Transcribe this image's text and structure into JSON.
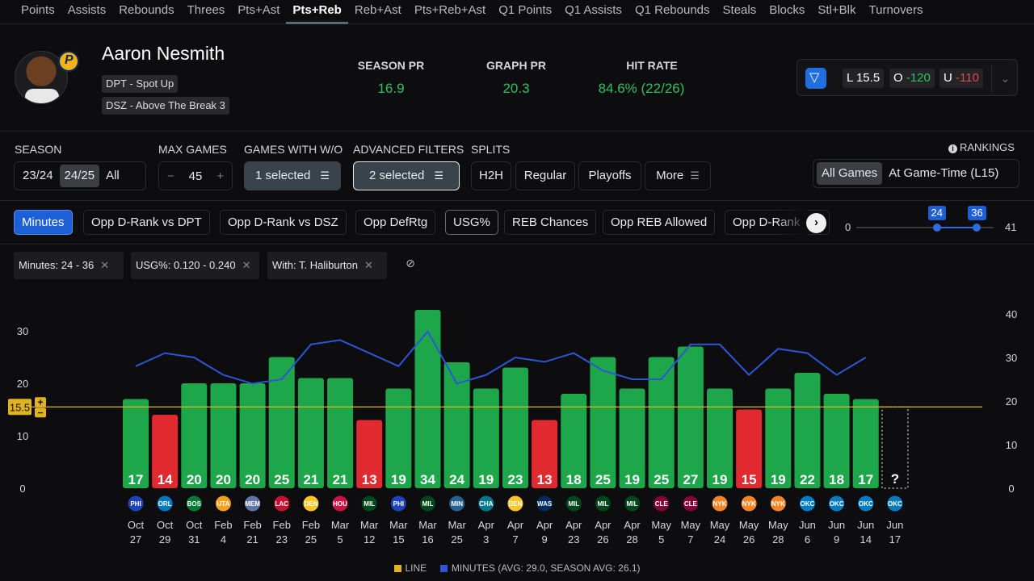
{
  "stat_tabs": [
    "Points",
    "Assists",
    "Rebounds",
    "Threes",
    "Pts+Ast",
    "Pts+Reb",
    "Reb+Ast",
    "Pts+Reb+Ast",
    "Q1 Points",
    "Q1 Assists",
    "Q1 Rebounds",
    "Steals",
    "Blocks",
    "Stl+Blk",
    "Turnovers"
  ],
  "active_stat_tab": "Pts+Reb",
  "player": {
    "name": "Aaron Nesmith",
    "tags": [
      "DPT - Spot Up",
      "DSZ - Above The Break 3"
    ]
  },
  "header_stats": {
    "season_pr": {
      "label": "SEASON PR",
      "value": "16.9"
    },
    "graph_pr": {
      "label": "GRAPH PR",
      "value": "20.3"
    },
    "hit_rate": {
      "label": "HIT RATE",
      "value": "84.6% (22/26)"
    }
  },
  "odds": {
    "book_icon": "fanduel-shield-icon",
    "line_label": "L",
    "line_value": "15.5",
    "over_label": "O",
    "over_value": "-120",
    "under_label": "U",
    "under_value": "-110"
  },
  "filters": {
    "season": {
      "label": "SEASON",
      "options": [
        "23/24",
        "24/25",
        "All"
      ],
      "selected": "24/25"
    },
    "max_games": {
      "label": "MAX GAMES",
      "value": "45",
      "minus": "−",
      "plus": "+"
    },
    "games_with_wo": {
      "label": "GAMES WITH W/O",
      "value": "1 selected"
    },
    "advanced": {
      "label": "ADVANCED FILTERS",
      "value": "2 selected"
    },
    "splits": {
      "label": "SPLITS",
      "options": [
        "H2H",
        "Regular",
        "Playoffs",
        "More"
      ]
    },
    "rankings": {
      "label": "RANKINGS",
      "options": [
        "All Games",
        "At Game-Time (L15)"
      ],
      "selected": "All Games"
    }
  },
  "metrics": {
    "chips": [
      "Minutes",
      "Opp D-Rank vs DPT",
      "Opp D-Rank vs DSZ",
      "Opp DefRtg",
      "USG%",
      "REB Chances",
      "Opp REB Allowed",
      "Opp D-Rank"
    ],
    "active": "Minutes",
    "outlined": "USG%"
  },
  "range_slider": {
    "min": 0,
    "max": 41,
    "low": 24,
    "high": 36
  },
  "active_filters": [
    "Minutes: 24 - 36",
    "USG%: 0.120 - 0.240",
    "With: T. Haliburton"
  ],
  "chart_data": {
    "type": "bar",
    "line": 15.5,
    "line_label_value": "15.5",
    "left_axis_ticks": [
      0,
      10,
      20,
      30
    ],
    "right_axis_ticks": [
      0,
      10,
      20,
      30,
      40
    ],
    "ylim_left": [
      0,
      34
    ],
    "ylim_right": [
      0,
      40
    ],
    "games": [
      {
        "month": "Oct",
        "day": "27",
        "opp": "PHI",
        "color": "#1d42ba",
        "value": 17,
        "minutes": 28
      },
      {
        "month": "Oct",
        "day": "29",
        "opp": "ORL",
        "color": "#0077c0",
        "value": 14,
        "minutes": 31
      },
      {
        "month": "Oct",
        "day": "31",
        "opp": "BOS",
        "color": "#007a33",
        "value": 20,
        "minutes": 30
      },
      {
        "month": "Feb",
        "day": "4",
        "opp": "UTA",
        "color": "#f9a01b",
        "value": 20,
        "minutes": 26
      },
      {
        "month": "Feb",
        "day": "21",
        "opp": "MEM",
        "color": "#5d76a9",
        "value": 20,
        "minutes": 24
      },
      {
        "month": "Feb",
        "day": "23",
        "opp": "LAC",
        "color": "#c8102e",
        "value": 25,
        "minutes": 25
      },
      {
        "month": "Feb",
        "day": "25",
        "opp": "DEN",
        "color": "#fec524",
        "value": 21,
        "minutes": 33
      },
      {
        "month": "Mar",
        "day": "5",
        "opp": "HOU",
        "color": "#ce1141",
        "value": 21,
        "minutes": 34
      },
      {
        "month": "Mar",
        "day": "12",
        "opp": "MIL",
        "color": "#00471b",
        "value": 13,
        "minutes": 31
      },
      {
        "month": "Mar",
        "day": "15",
        "opp": "PHI",
        "color": "#1d42ba",
        "value": 19,
        "minutes": 28
      },
      {
        "month": "Mar",
        "day": "16",
        "opp": "MIL",
        "color": "#00471b",
        "value": 34,
        "minutes": 36
      },
      {
        "month": "Mar",
        "day": "25",
        "opp": "MIN",
        "color": "#236192",
        "value": 24,
        "minutes": 24
      },
      {
        "month": "Apr",
        "day": "3",
        "opp": "CHA",
        "color": "#00788c",
        "value": 19,
        "minutes": 26
      },
      {
        "month": "Apr",
        "day": "7",
        "opp": "DEN",
        "color": "#fec524",
        "value": 23,
        "minutes": 30
      },
      {
        "month": "Apr",
        "day": "9",
        "opp": "WAS",
        "color": "#002b5c",
        "value": 13,
        "minutes": 29
      },
      {
        "month": "Apr",
        "day": "23",
        "opp": "MIL",
        "color": "#00471b",
        "value": 18,
        "minutes": 31
      },
      {
        "month": "Apr",
        "day": "26",
        "opp": "MIL",
        "color": "#00471b",
        "value": 25,
        "minutes": 27
      },
      {
        "month": "Apr",
        "day": "28",
        "opp": "MIL",
        "color": "#00471b",
        "value": 19,
        "minutes": 25
      },
      {
        "month": "May",
        "day": "5",
        "opp": "CLE",
        "color": "#860038",
        "value": 25,
        "minutes": 25
      },
      {
        "month": "May",
        "day": "7",
        "opp": "CLE",
        "color": "#860038",
        "value": 27,
        "minutes": 33
      },
      {
        "month": "May",
        "day": "24",
        "opp": "NYK",
        "color": "#f58426",
        "value": 19,
        "minutes": 33
      },
      {
        "month": "May",
        "day": "26",
        "opp": "NYK",
        "color": "#f58426",
        "value": 15,
        "minutes": 26
      },
      {
        "month": "May",
        "day": "28",
        "opp": "NYK",
        "color": "#f58426",
        "value": 19,
        "minutes": 32
      },
      {
        "month": "Jun",
        "day": "6",
        "opp": "OKC",
        "color": "#007ac1",
        "value": 22,
        "minutes": 31
      },
      {
        "month": "Jun",
        "day": "9",
        "opp": "OKC",
        "color": "#007ac1",
        "value": 18,
        "minutes": 26
      },
      {
        "month": "Jun",
        "day": "14",
        "opp": "OKC",
        "color": "#007ac1",
        "value": 17,
        "minutes": 30
      },
      {
        "month": "Jun",
        "day": "17",
        "opp": "OKC",
        "color": "#007ac1",
        "value": null,
        "minutes": null,
        "placeholder": "?"
      }
    ],
    "colors": {
      "hit": "#1ea64a",
      "miss": "#e02a2f",
      "line": "#e0b324",
      "minutes": "#2d56d6"
    },
    "legend": [
      {
        "label": "LINE",
        "color": "#e0b324"
      },
      {
        "label": "MINUTES (AVG: 29.0, SEASON AVG: 26.1)",
        "color": "#2d56d6"
      }
    ]
  }
}
